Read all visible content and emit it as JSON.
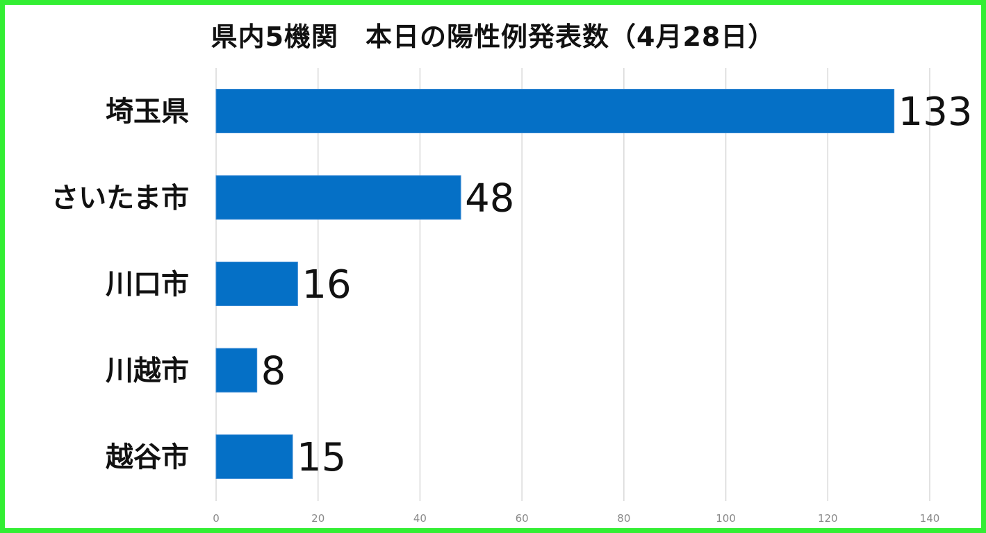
{
  "chart_data": {
    "type": "bar",
    "orientation": "horizontal",
    "title": "県内5機関　本日の陽性例発表数（4月28日）",
    "categories": [
      "埼玉県",
      "さいたま市",
      "川口市",
      "川越市",
      "越谷市"
    ],
    "values": [
      133,
      48,
      16,
      8,
      15
    ],
    "data_labels": [
      "133",
      "48",
      "16",
      "8",
      "15"
    ],
    "x_ticks": [
      "0",
      "20",
      "40",
      "60",
      "80",
      "100",
      "120",
      "140"
    ],
    "xlim": [
      0,
      140
    ],
    "grid": "vertical",
    "legend": "none",
    "bar_color": "#0570c6",
    "frame_color": "#33ee33"
  }
}
